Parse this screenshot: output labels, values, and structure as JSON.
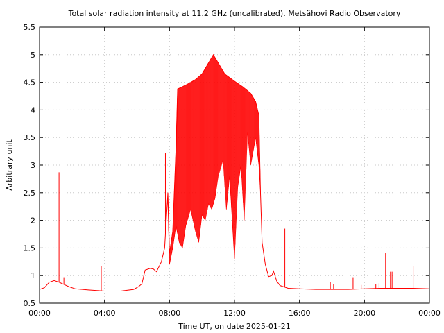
{
  "chart_data": {
    "type": "line",
    "title": "Total solar radiation intensity at 11.2 GHz (uncalibrated). Metsähovi Radio Observatory",
    "xlabel": "Time UT, on date 2025-01-21",
    "ylabel": "Arbitrary unit",
    "xlim": [
      0,
      24
    ],
    "ylim": [
      0.5,
      5.5
    ],
    "grid": true,
    "x_ticks": [
      {
        "value": 0,
        "label": "00:00"
      },
      {
        "value": 4,
        "label": "04:00"
      },
      {
        "value": 8,
        "label": "08:00"
      },
      {
        "value": 12,
        "label": "12:00"
      },
      {
        "value": 16,
        "label": "16:00"
      },
      {
        "value": 20,
        "label": "20:00"
      },
      {
        "value": 24,
        "label": "00:00"
      }
    ],
    "y_ticks": [
      {
        "value": 0.5,
        "label": "0.5"
      },
      {
        "value": 1,
        "label": "1"
      },
      {
        "value": 1.5,
        "label": "1.5"
      },
      {
        "value": 2,
        "label": "2"
      },
      {
        "value": 2.5,
        "label": "2.5"
      },
      {
        "value": 3,
        "label": "3"
      },
      {
        "value": 3.5,
        "label": "3.5"
      },
      {
        "value": 4,
        "label": "4"
      },
      {
        "value": 4.5,
        "label": "4.5"
      },
      {
        "value": 5,
        "label": "5"
      },
      {
        "value": 5.5,
        "label": "5.5"
      }
    ],
    "series": [
      {
        "color": "#ff0000",
        "upper_envelope": [
          [
            0.0,
            0.75
          ],
          [
            0.3,
            0.78
          ],
          [
            0.6,
            0.88
          ],
          [
            0.9,
            0.91
          ],
          [
            1.2,
            0.88
          ],
          [
            1.5,
            0.84
          ],
          [
            1.8,
            0.8
          ],
          [
            2.2,
            0.76
          ],
          [
            3.0,
            0.74
          ],
          [
            4.0,
            0.72
          ],
          [
            5.0,
            0.72
          ],
          [
            5.8,
            0.75
          ],
          [
            6.1,
            0.8
          ],
          [
            6.3,
            0.85
          ],
          [
            6.5,
            1.1
          ],
          [
            6.8,
            1.13
          ],
          [
            7.0,
            1.12
          ],
          [
            7.2,
            1.07
          ],
          [
            7.5,
            1.25
          ],
          [
            7.7,
            1.5
          ],
          [
            7.9,
            2.5
          ],
          [
            8.0,
            1.4
          ],
          [
            8.2,
            1.8
          ],
          [
            8.4,
            3.3
          ],
          [
            8.5,
            4.38
          ],
          [
            8.8,
            4.42
          ],
          [
            9.2,
            4.48
          ],
          [
            9.6,
            4.55
          ],
          [
            10.0,
            4.65
          ],
          [
            10.4,
            4.85
          ],
          [
            10.7,
            5.0
          ],
          [
            11.0,
            4.85
          ],
          [
            11.4,
            4.65
          ],
          [
            12.0,
            4.52
          ],
          [
            12.5,
            4.42
          ],
          [
            13.0,
            4.3
          ],
          [
            13.3,
            4.15
          ],
          [
            13.5,
            3.9
          ],
          [
            13.6,
            2.5
          ],
          [
            13.7,
            1.6
          ],
          [
            13.9,
            1.2
          ],
          [
            14.1,
            0.98
          ],
          [
            14.3,
            1.0
          ],
          [
            14.4,
            1.08
          ],
          [
            14.6,
            0.9
          ],
          [
            14.8,
            0.82
          ],
          [
            15.0,
            0.8
          ],
          [
            15.3,
            0.77
          ],
          [
            16.0,
            0.76
          ],
          [
            17.0,
            0.75
          ],
          [
            18.0,
            0.75
          ],
          [
            19.0,
            0.75
          ],
          [
            20.0,
            0.76
          ],
          [
            21.0,
            0.77
          ],
          [
            22.0,
            0.77
          ],
          [
            23.0,
            0.77
          ],
          [
            24.0,
            0.76
          ]
        ],
        "lower_envelope": [
          [
            7.9,
            2.3
          ],
          [
            8.0,
            1.2
          ],
          [
            8.2,
            1.5
          ],
          [
            8.4,
            1.9
          ],
          [
            8.6,
            1.6
          ],
          [
            8.8,
            1.5
          ],
          [
            9.0,
            1.9
          ],
          [
            9.3,
            2.2
          ],
          [
            9.6,
            1.8
          ],
          [
            9.8,
            1.6
          ],
          [
            10.0,
            2.1
          ],
          [
            10.2,
            2.0
          ],
          [
            10.4,
            2.3
          ],
          [
            10.6,
            2.2
          ],
          [
            10.8,
            2.4
          ],
          [
            11.0,
            2.8
          ],
          [
            11.3,
            3.1
          ],
          [
            11.5,
            2.2
          ],
          [
            11.7,
            2.8
          ],
          [
            12.0,
            1.3
          ],
          [
            12.2,
            2.6
          ],
          [
            12.4,
            3.0
          ],
          [
            12.6,
            2.0
          ],
          [
            12.8,
            3.6
          ],
          [
            13.0,
            3.0
          ],
          [
            13.3,
            3.5
          ],
          [
            13.5,
            3.0
          ],
          [
            13.6,
            2.5
          ]
        ],
        "spikes": [
          {
            "x": 1.2,
            "y": 2.87
          },
          {
            "x": 1.5,
            "y": 0.97
          },
          {
            "x": 3.8,
            "y": 1.17
          },
          {
            "x": 7.75,
            "y": 3.22
          },
          {
            "x": 15.1,
            "y": 1.85
          },
          {
            "x": 17.9,
            "y": 0.88
          },
          {
            "x": 18.1,
            "y": 0.85
          },
          {
            "x": 19.3,
            "y": 0.97
          },
          {
            "x": 19.8,
            "y": 0.83
          },
          {
            "x": 20.7,
            "y": 0.85
          },
          {
            "x": 20.9,
            "y": 0.86
          },
          {
            "x": 21.3,
            "y": 1.41
          },
          {
            "x": 21.6,
            "y": 1.07
          },
          {
            "x": 21.7,
            "y": 1.07
          },
          {
            "x": 23.0,
            "y": 1.17
          }
        ]
      }
    ]
  }
}
